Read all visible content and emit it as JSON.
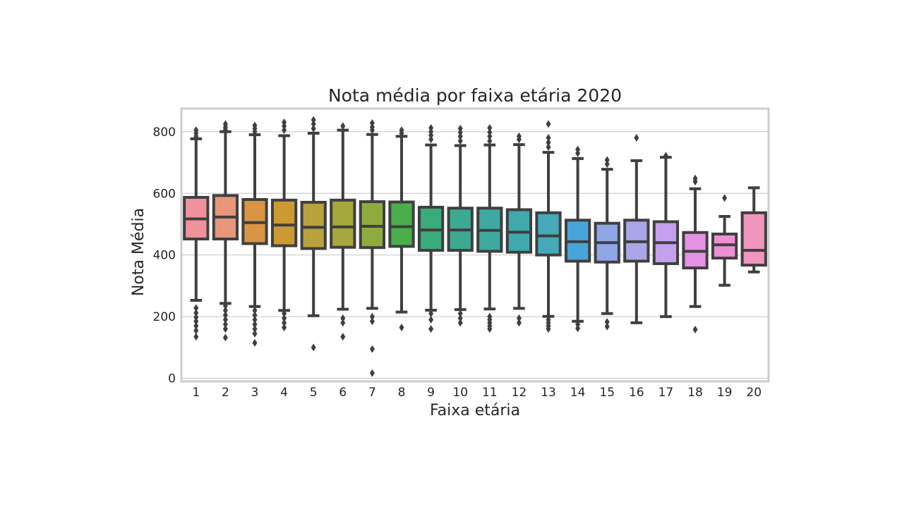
{
  "chart_data": {
    "type": "boxplot",
    "title": "Nota média por faixa etária 2020",
    "xlabel": "Faixa etária",
    "ylabel": "Nota Média",
    "ylim": [
      -10,
      875
    ],
    "yticks": [
      0,
      200,
      400,
      600,
      800
    ],
    "grid": true,
    "categories": [
      "1",
      "2",
      "3",
      "4",
      "5",
      "6",
      "7",
      "8",
      "9",
      "10",
      "11",
      "12",
      "13",
      "14",
      "15",
      "16",
      "17",
      "18",
      "19",
      "20"
    ],
    "colors": [
      "#f0919b",
      "#e8967a",
      "#d99543",
      "#cc9933",
      "#b8a23c",
      "#a5a83c",
      "#8eac3d",
      "#4aae4d",
      "#3aab7a",
      "#3ea993",
      "#3ea9a0",
      "#40a9ad",
      "#44aab9",
      "#48a5da",
      "#8fa7e6",
      "#aaa6e8",
      "#c5a0ec",
      "#e592e5",
      "#ec8fd3",
      "#f095be"
    ],
    "boxes": [
      {
        "whislo": 253,
        "q1": 452,
        "med": 517,
        "q3": 587,
        "whishi": 777,
        "fliers": [
          805,
          795,
          785,
          228,
          212,
          198,
          185,
          170,
          155,
          135
        ]
      },
      {
        "whislo": 243,
        "q1": 452,
        "med": 523,
        "q3": 593,
        "whishi": 800,
        "fliers": [
          825,
          815,
          808,
          235,
          220,
          205,
          190,
          175,
          160,
          132
        ]
      },
      {
        "whislo": 233,
        "q1": 437,
        "med": 505,
        "q3": 580,
        "whishi": 790,
        "fliers": [
          820,
          810,
          800,
          220,
          205,
          190,
          175,
          160,
          145,
          115
        ]
      },
      {
        "whislo": 220,
        "q1": 430,
        "med": 497,
        "q3": 578,
        "whishi": 787,
        "fliers": [
          830,
          818,
          805,
          210,
          195,
          180,
          165
        ]
      },
      {
        "whislo": 203,
        "q1": 421,
        "med": 490,
        "q3": 571,
        "whishi": 795,
        "fliers": [
          838,
          825,
          810,
          100
        ]
      },
      {
        "whislo": 224,
        "q1": 425,
        "med": 491,
        "q3": 578,
        "whishi": 805,
        "fliers": [
          818,
          195,
          180,
          135
        ]
      },
      {
        "whislo": 227,
        "q1": 424,
        "med": 493,
        "q3": 573,
        "whishi": 791,
        "fliers": [
          828,
          815,
          805,
          200,
          185,
          95,
          17
        ]
      },
      {
        "whislo": 215,
        "q1": 428,
        "med": 492,
        "q3": 572,
        "whishi": 785,
        "fliers": [
          805,
          795,
          165
        ]
      },
      {
        "whislo": 221,
        "q1": 415,
        "med": 481,
        "q3": 555,
        "whishi": 757,
        "fliers": [
          812,
          800,
          788,
          775,
          210,
          190,
          160
        ]
      },
      {
        "whislo": 223,
        "q1": 415,
        "med": 481,
        "q3": 552,
        "whishi": 755,
        "fliers": [
          810,
          798,
          785,
          770,
          210,
          195,
          180
        ]
      },
      {
        "whislo": 225,
        "q1": 412,
        "med": 480,
        "q3": 552,
        "whishi": 757,
        "fliers": [
          812,
          798,
          785,
          770,
          200,
          190,
          180,
          170,
          160
        ]
      },
      {
        "whislo": 227,
        "q1": 409,
        "med": 474,
        "q3": 547,
        "whishi": 758,
        "fliers": [
          785,
          775,
          195,
          180
        ]
      },
      {
        "whislo": 201,
        "q1": 400,
        "med": 462,
        "q3": 537,
        "whishi": 733,
        "fliers": [
          825,
          780,
          765,
          750,
          190,
          180,
          170,
          160
        ]
      },
      {
        "whislo": 185,
        "q1": 380,
        "med": 443,
        "q3": 513,
        "whishi": 713,
        "fliers": [
          742,
          730,
          175,
          162
        ]
      },
      {
        "whislo": 210,
        "q1": 377,
        "med": 440,
        "q3": 503,
        "whishi": 678,
        "fliers": [
          708,
          695,
          183,
          168
        ]
      },
      {
        "whislo": 180,
        "q1": 380,
        "med": 443,
        "q3": 513,
        "whishi": 706,
        "fliers": [
          780
        ]
      },
      {
        "whislo": 200,
        "q1": 372,
        "med": 440,
        "q3": 508,
        "whishi": 717,
        "fliers": [
          722
        ]
      },
      {
        "whislo": 233,
        "q1": 358,
        "med": 412,
        "q3": 473,
        "whishi": 615,
        "fliers": [
          648,
          638,
          158
        ]
      },
      {
        "whislo": 302,
        "q1": 390,
        "med": 433,
        "q3": 468,
        "whishi": 525,
        "fliers": [
          585
        ]
      },
      {
        "whislo": 345,
        "q1": 367,
        "med": 415,
        "q3": 537,
        "whishi": 618,
        "fliers": []
      }
    ]
  }
}
